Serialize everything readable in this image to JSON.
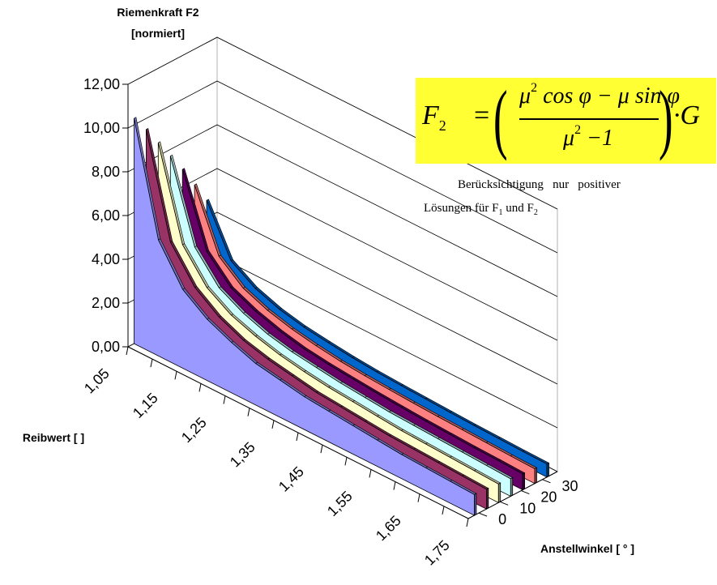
{
  "chart_data": {
    "type": "area",
    "variant": "3d-ribbon",
    "title": "",
    "ylabel_line1": "Riemenkraft F2",
    "ylabel_line2": "[normiert]",
    "xlabel": "Reibwert [ ]",
    "zlabel": "Anstellwinkel [ ° ]",
    "y_ticks": [
      "0,00",
      "2,00",
      "4,00",
      "6,00",
      "8,00",
      "10,00",
      "12,00"
    ],
    "ylim": [
      0,
      12
    ],
    "x_ticks": [
      "1,05",
      "1,15",
      "1,25",
      "1,35",
      "1,45",
      "1,55",
      "1,65",
      "1,75"
    ],
    "z_ticks": [
      "0",
      "10",
      "20",
      "30"
    ],
    "x": [
      1.05,
      1.1,
      1.15,
      1.2,
      1.25,
      1.3,
      1.35,
      1.4,
      1.45,
      1.5,
      1.55,
      1.6,
      1.65,
      1.7,
      1.75
    ],
    "series": [
      {
        "angle": 0,
        "color": "#9999ff",
        "values": [
          10.3,
          5.3,
          3.6,
          2.8,
          2.3,
          1.9,
          1.7,
          1.5,
          1.4,
          1.3,
          1.2,
          1.1,
          1.05,
          1.0,
          0.95
        ]
      },
      {
        "angle": 5,
        "color": "#993366",
        "values": [
          9.5,
          4.9,
          3.4,
          2.6,
          2.1,
          1.8,
          1.6,
          1.4,
          1.3,
          1.2,
          1.1,
          1.05,
          1.0,
          0.95,
          0.9
        ]
      },
      {
        "angle": 10,
        "color": "#ffffcc",
        "values": [
          8.6,
          4.5,
          3.1,
          2.4,
          2.0,
          1.7,
          1.5,
          1.35,
          1.25,
          1.15,
          1.05,
          1.0,
          0.95,
          0.9,
          0.85
        ]
      },
      {
        "angle": 15,
        "color": "#ccffff",
        "values": [
          7.7,
          4.1,
          2.8,
          2.2,
          1.8,
          1.55,
          1.4,
          1.25,
          1.15,
          1.05,
          1.0,
          0.95,
          0.9,
          0.85,
          0.8
        ]
      },
      {
        "angle": 20,
        "color": "#660066",
        "values": [
          6.8,
          3.6,
          2.5,
          2.0,
          1.65,
          1.4,
          1.25,
          1.15,
          1.05,
          0.97,
          0.9,
          0.85,
          0.8,
          0.77,
          0.73
        ]
      },
      {
        "angle": 25,
        "color": "#ff8080",
        "values": [
          5.8,
          3.1,
          2.2,
          1.75,
          1.45,
          1.25,
          1.1,
          1.0,
          0.93,
          0.87,
          0.82,
          0.78,
          0.74,
          0.7,
          0.67
        ]
      },
      {
        "angle": 30,
        "color": "#0066cc",
        "values": [
          4.8,
          2.6,
          1.9,
          1.5,
          1.25,
          1.1,
          0.97,
          0.88,
          0.82,
          0.77,
          0.72,
          0.68,
          0.65,
          0.62,
          0.6
        ]
      }
    ],
    "grid": true,
    "legend": "none"
  },
  "formula": {
    "lhs": "F",
    "lhs_sub": "2",
    "eq": "=",
    "num_a": "μ",
    "num_a_sup": "2",
    "num_b": " cos φ − μ sin φ",
    "den_a": "μ",
    "den_a_sup": "2",
    "den_b": " −1",
    "tail": "·G"
  },
  "annotation": {
    "line1": "Berücksichtigung   nur   positiver",
    "line2_prefix": "Lösungen für F",
    "sub1": "1",
    "line2_mid": " und F",
    "sub2": "2"
  }
}
